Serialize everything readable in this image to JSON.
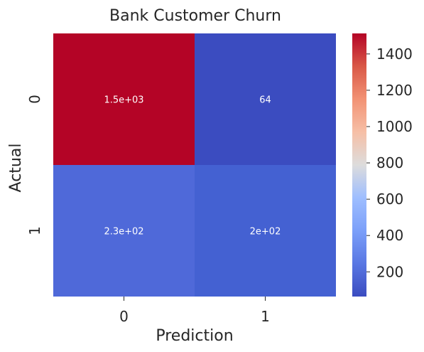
{
  "chart_data": {
    "type": "heatmap",
    "title": "Bank Customer Churn",
    "xlabel": "Prediction",
    "ylabel": "Actual",
    "x_categories": [
      "0",
      "1"
    ],
    "y_categories": [
      "0",
      "1"
    ],
    "values": [
      [
        1513,
        64
      ],
      [
        230,
        200
      ]
    ],
    "annotations": [
      [
        "1.5e+03",
        "64"
      ],
      [
        "2.3e+02",
        "2e+02"
      ]
    ],
    "colormap": "coolwarm",
    "colorbar": {
      "range": [
        64,
        1513
      ],
      "ticks": [
        200,
        400,
        600,
        800,
        1000,
        1200,
        1400
      ],
      "tick_labels": [
        "200",
        "400",
        "600",
        "800",
        "1000",
        "1200",
        "1400"
      ]
    },
    "cell_colors": [
      [
        "#b40426",
        "#3b4cc0"
      ],
      [
        "#4f69d9",
        "#4461d2"
      ]
    ]
  }
}
